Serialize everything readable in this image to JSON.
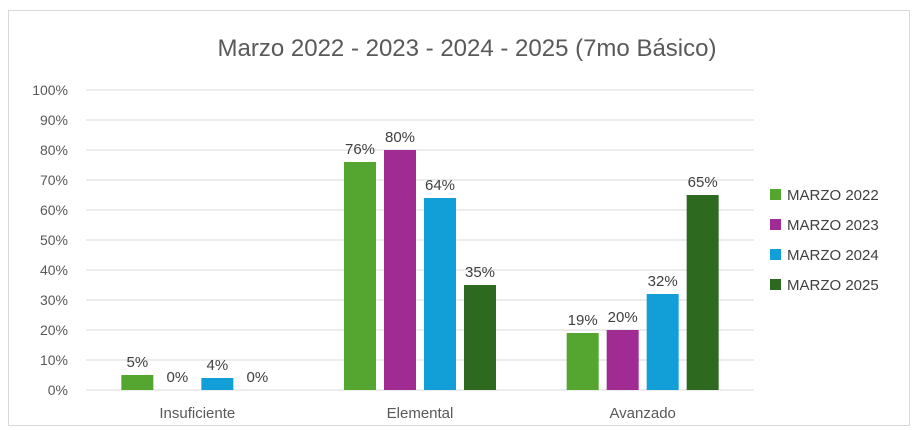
{
  "chart_data": {
    "type": "bar",
    "title": "Marzo 2022 - 2023 - 2024 - 2025 (7mo Básico)",
    "categories": [
      "Insuficiente",
      "Elemental",
      "Avanzado"
    ],
    "series": [
      {
        "name": "MARZO 2022",
        "values": [
          5,
          76,
          19
        ],
        "labels": [
          "5%",
          "76%",
          "19%"
        ],
        "color": "#55a630"
      },
      {
        "name": "MARZO 2023",
        "values": [
          0,
          80,
          20
        ],
        "labels": [
          "0%",
          "80%",
          "20%"
        ],
        "color": "#a02b93"
      },
      {
        "name": "MARZO 2024",
        "values": [
          4,
          64,
          32
        ],
        "labels": [
          "4%",
          "64%",
          "32%"
        ],
        "color": "#129fd8"
      },
      {
        "name": "MARZO 2025",
        "values": [
          0,
          35,
          65
        ],
        "labels": [
          "0%",
          "35%",
          "65%"
        ],
        "color": "#2d6a1f"
      }
    ],
    "ylim": [
      0,
      100
    ],
    "yticks": [
      "0%",
      "10%",
      "20%",
      "30%",
      "40%",
      "50%",
      "60%",
      "70%",
      "80%",
      "90%",
      "100%"
    ],
    "grid": true,
    "legend_position": "right"
  }
}
